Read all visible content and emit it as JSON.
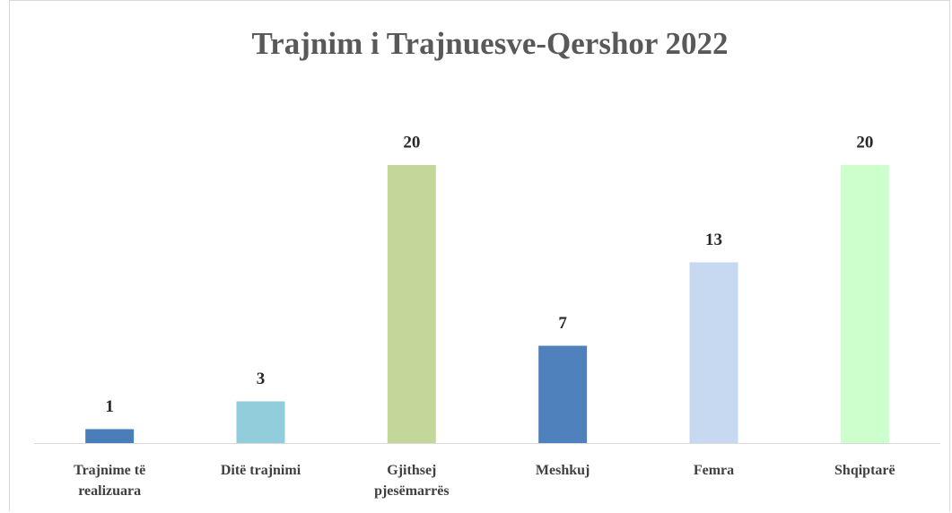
{
  "chart_data": {
    "type": "bar",
    "title": "Trajnim i Trajnuesve-Qershor 2022",
    "categories": [
      "Trajnime të realizuara",
      "Ditë trajnimi",
      "Gjithsej pjesëmarrës",
      "Meshkuj",
      "Femra",
      "Shqiptarë"
    ],
    "values": [
      1,
      3,
      20,
      7,
      13,
      20
    ],
    "colors": [
      "#4a7ebb",
      "#92cddc",
      "#c4d79b",
      "#4f81bd",
      "#c6d9f1",
      "#ccffcc"
    ]
  }
}
